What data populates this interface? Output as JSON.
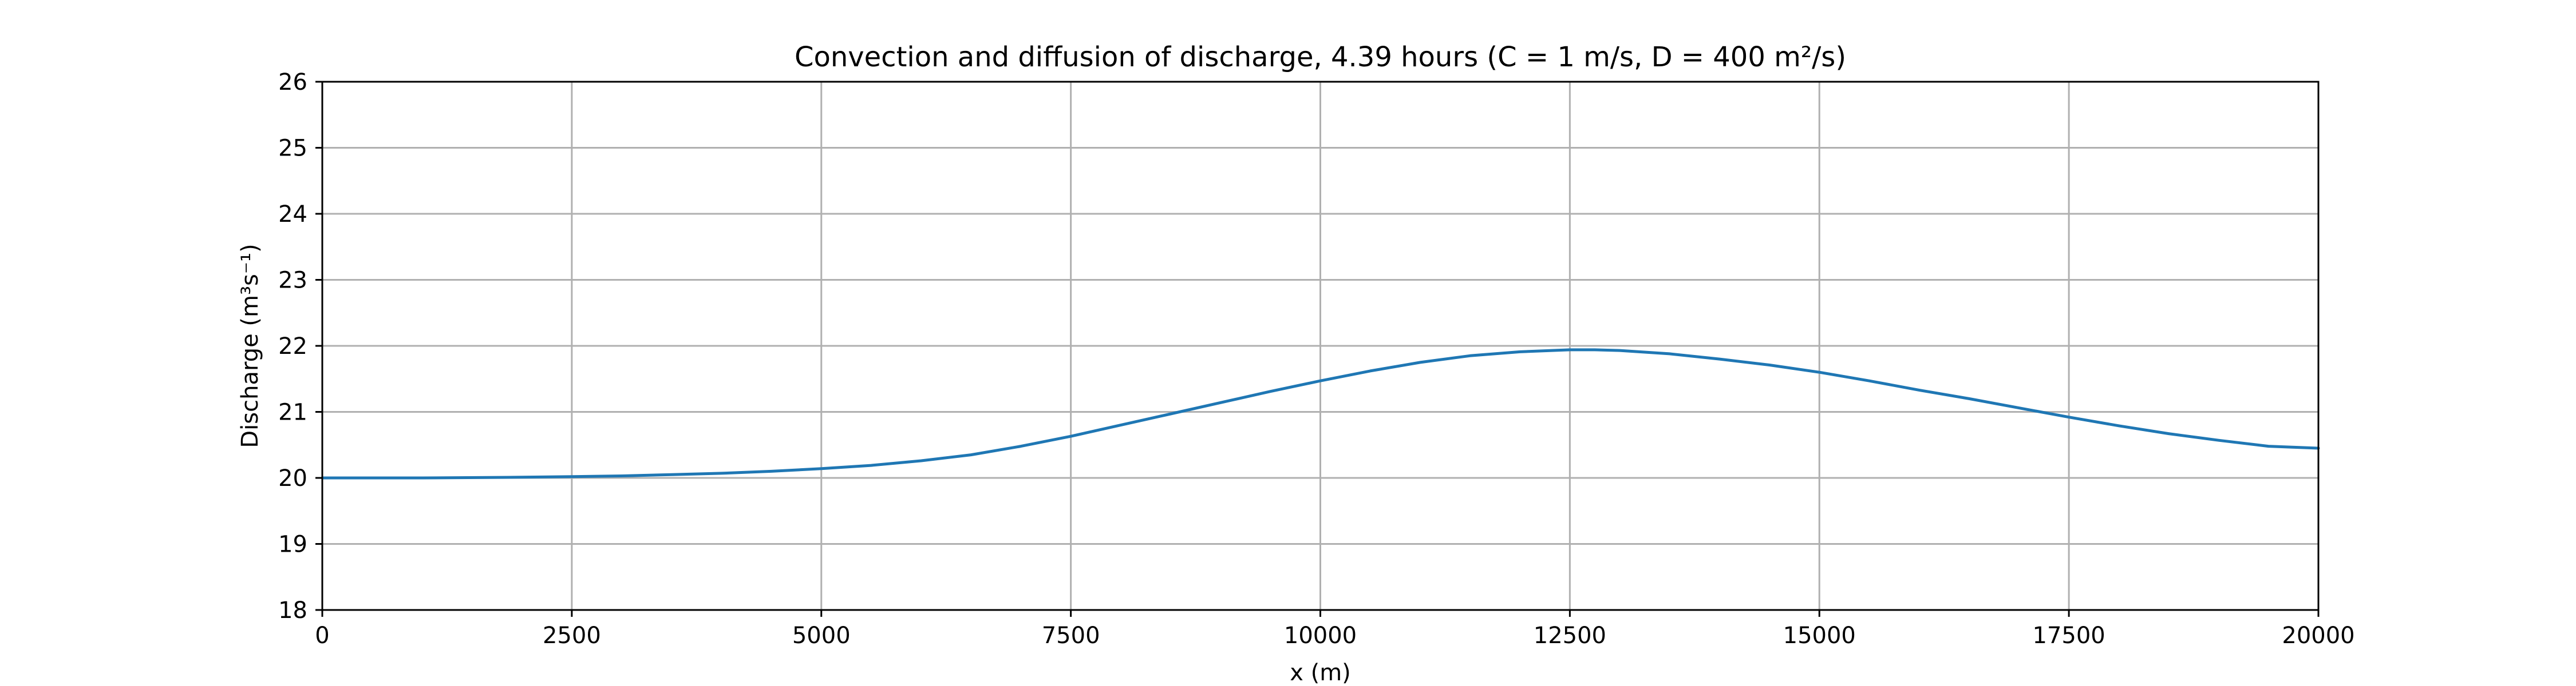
{
  "chart_data": {
    "type": "line",
    "title": "Convection and diffusion of discharge, 4.39 hours (C = 1 m/s, D = 400 m²/s)",
    "xlabel": "x (m)",
    "ylabel": "Discharge (m³s⁻¹)",
    "xlim": [
      0,
      20000
    ],
    "ylim": [
      18,
      26
    ],
    "xticks": [
      0,
      2500,
      5000,
      7500,
      10000,
      12500,
      15000,
      17500,
      20000
    ],
    "yticks": [
      18,
      19,
      20,
      21,
      22,
      23,
      24,
      25,
      26
    ],
    "grid": true,
    "line_color": "#1f77b4",
    "series": [
      {
        "x": [
          0,
          1000,
          2000,
          2500,
          3000,
          3500,
          4000,
          4500,
          5000,
          5500,
          6000,
          6500,
          7000,
          7500,
          8000,
          8500,
          9000,
          9500,
          10000,
          10500,
          11000,
          11500,
          12000,
          12500,
          12750,
          13000,
          13500,
          14000,
          14500,
          15000,
          15500,
          16000,
          16500,
          17000,
          17500,
          18000,
          18500,
          19000,
          19500,
          20000
        ],
        "y": [
          20.0,
          20.0,
          20.01,
          20.02,
          20.03,
          20.05,
          20.07,
          20.1,
          20.14,
          20.19,
          20.26,
          20.35,
          20.48,
          20.63,
          20.8,
          20.97,
          21.14,
          21.31,
          21.47,
          21.62,
          21.75,
          21.85,
          21.91,
          21.94,
          21.94,
          21.93,
          21.88,
          21.8,
          21.71,
          21.6,
          21.47,
          21.33,
          21.2,
          21.06,
          20.92,
          20.79,
          20.67,
          20.57,
          20.48,
          20.45
        ]
      }
    ]
  }
}
